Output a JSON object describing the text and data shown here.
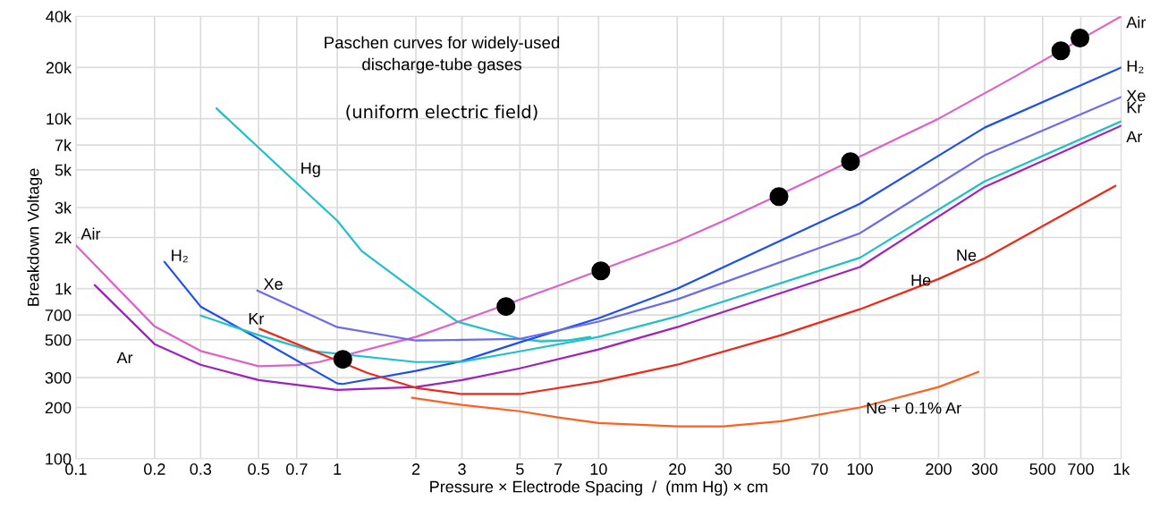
{
  "chart_data": {
    "type": "line",
    "title": "Paschen curves for widely-used\ndischarge-tube gases",
    "subtitle": "(uniform electric field)",
    "xlabel": "Pressure × Electrode Spacing  /  (mm Hg) × cm",
    "ylabel": "Breakdown Voltage",
    "log": "xy",
    "grid": true,
    "line_style": "solid",
    "xlim": [
      0.1,
      1000
    ],
    "ylim": [
      100,
      40000
    ],
    "xticks": [
      0.1,
      0.2,
      0.3,
      0.5,
      0.7,
      1,
      2,
      3,
      5,
      7,
      10,
      20,
      30,
      50,
      70,
      100,
      200,
      300,
      500,
      700,
      {
        "value": 1000,
        "label": "1k"
      }
    ],
    "yticks": [
      100,
      200,
      300,
      500,
      700,
      {
        "value": 1000,
        "label": "1k"
      },
      {
        "value": 2000,
        "label": "2k"
      },
      {
        "value": 3000,
        "label": "3k"
      },
      {
        "value": 5000,
        "label": "5k"
      },
      {
        "value": 7000,
        "label": "7k"
      },
      {
        "value": 10000,
        "label": "10k"
      },
      {
        "value": 20000,
        "label": "20k"
      },
      {
        "value": 40000,
        "label": "40k"
      }
    ],
    "annotations": [
      {
        "text": "He",
        "x": 200,
        "y": 1140
      }
    ],
    "series": [
      {
        "name": "Air",
        "color": "#e060c8",
        "x": [
          0.1,
          0.2,
          0.3,
          0.5,
          0.7,
          0.85,
          2,
          3,
          7,
          20,
          30,
          70,
          200,
          400,
          1000
        ],
        "values": [
          1800,
          600,
          430,
          350,
          355,
          370,
          520,
          650,
          1040,
          1900,
          2500,
          4600,
          10000,
          18000,
          40000
        ]
      },
      {
        "name": "Hg",
        "color": "#20c0c8",
        "x": [
          0.345,
          0.676,
          1,
          1.24,
          2,
          2.88,
          5,
          6,
          7.5,
          9.3
        ],
        "values": [
          11500,
          4380,
          2510,
          1664,
          965,
          639,
          507,
          490,
          495,
          520
        ]
      },
      {
        "name": "H₂",
        "color": "#1e50f0",
        "x": [
          0.218,
          0.3,
          0.5,
          1,
          1.05,
          2,
          3,
          5,
          10,
          20,
          100,
          300,
          1000
        ],
        "values": [
          1440,
          785,
          507,
          277,
          275,
          328,
          375,
          484,
          670,
          1000,
          3160,
          8860,
          20000
        ]
      },
      {
        "name": "Xe",
        "color": "#6a6af0",
        "x": [
          0.494,
          1,
          2,
          3,
          5,
          10,
          20,
          100,
          300,
          1000
        ],
        "values": [
          976,
          594,
          495,
          500,
          507,
          640,
          865,
          2120,
          6090,
          13400
        ]
      },
      {
        "name": "Kr",
        "color": "#20c0c8",
        "x": [
          0.3,
          0.5,
          0.8,
          2,
          3,
          5,
          10,
          20,
          100,
          300,
          1000
        ],
        "values": [
          695,
          533,
          430,
          370,
          372,
          428,
          520,
          687,
          1520,
          4280,
          9650
        ]
      },
      {
        "name": "Ar",
        "color": "#a020c0",
        "x": [
          0.118,
          0.2,
          0.3,
          0.5,
          1,
          2,
          3,
          5,
          10,
          20,
          100,
          300,
          1000
        ],
        "values": [
          1050,
          472,
          357,
          290,
          254,
          264,
          290,
          340,
          439,
          594,
          1340,
          3970,
          9100
        ]
      },
      {
        "name": "Ne",
        "color": "#f02818",
        "x": [
          0.505,
          1.3,
          2,
          3,
          5,
          10,
          20,
          50,
          100,
          200,
          300,
          950
        ],
        "values": [
          580,
          320,
          261,
          240,
          240,
          284,
          357,
          533,
          757,
          1140,
          1510,
          4030
        ]
      },
      {
        "name": "Ne + 0.1% Ar",
        "color": "#ff6020",
        "x": [
          1.93,
          3,
          5,
          7,
          10,
          20,
          30,
          50,
          100,
          200,
          284
        ],
        "values": [
          228,
          207,
          190,
          175,
          162,
          155,
          155,
          166,
          200,
          264,
          324
        ]
      },
      {
        "type": "scatter",
        "marker": "circle",
        "color": "#000000",
        "x": [
          1.05,
          4.42,
          10.2,
          49,
          92,
          587,
          695
        ],
        "values": [
          384,
          785,
          1274,
          3480,
          5590,
          25100,
          29800
        ]
      }
    ]
  }
}
